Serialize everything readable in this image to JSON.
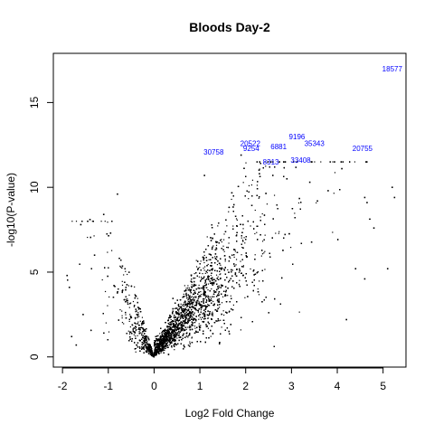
{
  "chart_data": {
    "type": "scatter",
    "title": "Bloods Day-2",
    "xlabel": "Log2 Fold Change",
    "ylabel": "-log10(P-value)",
    "xlim": [
      -2.2,
      5.5
    ],
    "ylim": [
      -0.6,
      17.9
    ],
    "xticks": [
      -2,
      -1,
      0,
      1,
      2,
      3,
      4,
      5
    ],
    "yticks": [
      0,
      5,
      10,
      15
    ],
    "grid": false,
    "point_color": "#000000",
    "label_color": "#0000ff",
    "labeled_points": [
      {
        "label": "18577",
        "x": 5.2,
        "y": 17.0
      },
      {
        "label": "9196",
        "x": 3.12,
        "y": 13.0
      },
      {
        "label": "35343",
        "x": 3.5,
        "y": 12.6
      },
      {
        "label": "20522",
        "x": 2.1,
        "y": 12.6
      },
      {
        "label": "9254",
        "x": 2.12,
        "y": 12.3
      },
      {
        "label": "6881",
        "x": 2.72,
        "y": 12.4
      },
      {
        "label": "20755",
        "x": 4.55,
        "y": 12.3
      },
      {
        "label": "30758",
        "x": 1.3,
        "y": 12.1
      },
      {
        "label": "33408",
        "x": 3.2,
        "y": 11.6
      },
      {
        "label": "8313",
        "x": 2.55,
        "y": 11.5
      }
    ],
    "scatter_cloud": {
      "description_points_approx": "dense cloud of several thousand genes",
      "x_range": [
        -1.9,
        5.3
      ],
      "y_range": [
        0,
        11.5
      ]
    },
    "outlier_points": [
      {
        "x": -1.9,
        "y": 4.8
      },
      {
        "x": -1.85,
        "y": 4.1
      },
      {
        "x": -1.8,
        "y": 1.2
      },
      {
        "x": -1.7,
        "y": 0.7
      },
      {
        "x": -1.6,
        "y": 7.8
      },
      {
        "x": -1.55,
        "y": 2.5
      },
      {
        "x": -1.4,
        "y": 8.1
      },
      {
        "x": -1.3,
        "y": 6.0
      },
      {
        "x": -1.1,
        "y": 8.4
      },
      {
        "x": -0.8,
        "y": 9.6
      },
      {
        "x": -0.95,
        "y": 7.3
      },
      {
        "x": 1.1,
        "y": 10.7
      },
      {
        "x": 1.9,
        "y": 11.9
      },
      {
        "x": 2.3,
        "y": 10.8
      },
      {
        "x": 2.9,
        "y": 10.5
      },
      {
        "x": 3.4,
        "y": 10.3
      },
      {
        "x": 3.8,
        "y": 9.8
      },
      {
        "x": 4.1,
        "y": 11.1
      },
      {
        "x": 4.6,
        "y": 9.4
      },
      {
        "x": 4.65,
        "y": 9.1
      },
      {
        "x": 5.2,
        "y": 10.0
      },
      {
        "x": 5.25,
        "y": 9.4
      },
      {
        "x": 4.8,
        "y": 7.6
      },
      {
        "x": 4.4,
        "y": 5.2
      },
      {
        "x": 5.1,
        "y": 5.2
      },
      {
        "x": 4.2,
        "y": 2.2
      },
      {
        "x": 4.6,
        "y": 4.6
      }
    ]
  }
}
